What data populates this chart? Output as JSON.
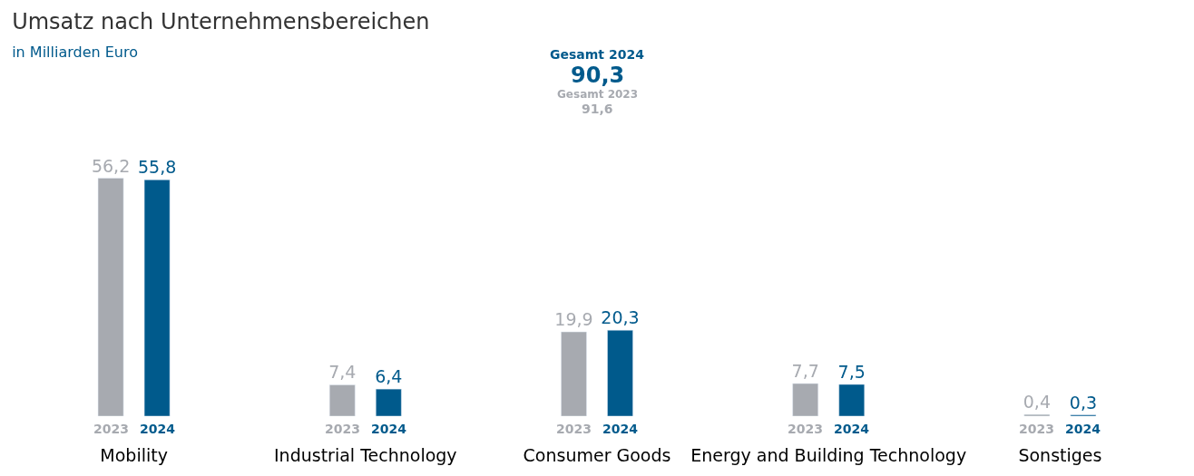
{
  "chart_data": {
    "type": "bar",
    "title": "Umsatz nach Unternehmensbereichen",
    "subtitle": "in Milliarden Euro",
    "categories": [
      "Mobility",
      "Industrial Technology",
      "Consumer Goods",
      "Energy and Building Technology",
      "Sonstiges"
    ],
    "series": [
      {
        "name": "2023",
        "color": "#a7aab0",
        "values": [
          56.2,
          7.4,
          19.9,
          7.7,
          0.4
        ],
        "value_labels": [
          "56,2",
          "7,4",
          "19,9",
          "7,7",
          "0,4"
        ]
      },
      {
        "name": "2024",
        "color": "#005a8c",
        "values": [
          55.8,
          6.4,
          20.3,
          7.5,
          0.3
        ],
        "value_labels": [
          "55,8",
          "6,4",
          "20,3",
          "7,5",
          "0,3"
        ]
      }
    ],
    "annotations": [
      "Gesamt 2024",
      "90,3",
      "Gesamt 2023",
      "91,6"
    ],
    "legend": false
  }
}
